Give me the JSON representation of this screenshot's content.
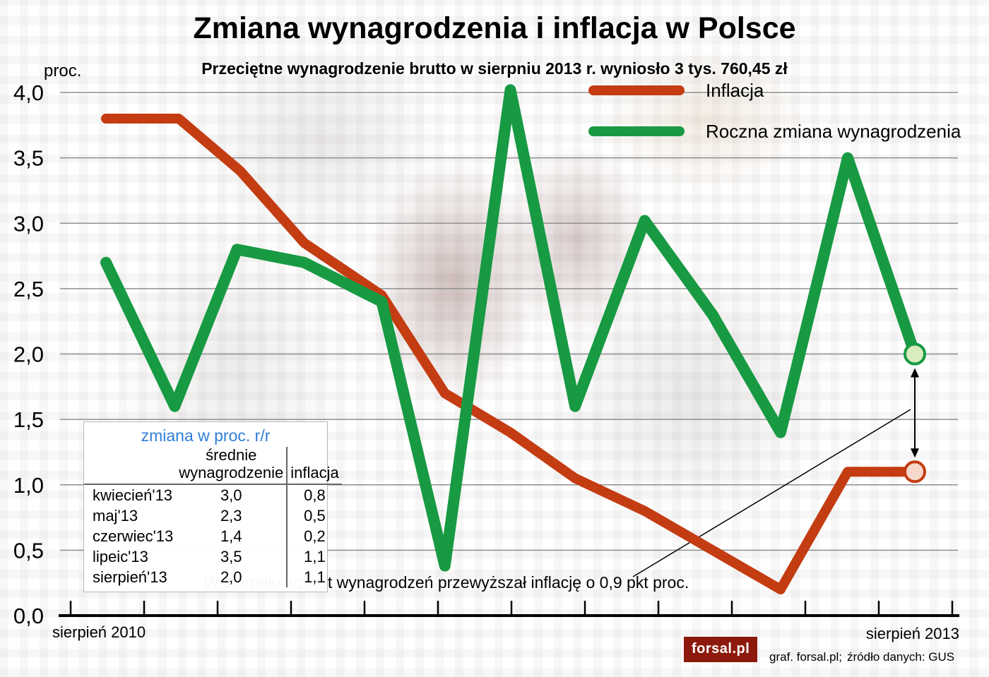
{
  "title": "Zmiana wynagrodzenia i inflacja w Polsce",
  "subtitle": "Przeciętne wynagrodzenie brutto w sierpniu 2013 r. wyniosło 3 tys. 760,45 zł",
  "axis": {
    "unit_label": "proc.",
    "x_left_label": "sierpień 2010",
    "x_right_label": "sierpień 2013"
  },
  "legend": [
    {
      "label": "Inflacja",
      "color": "#c43c12"
    },
    {
      "label": "Roczna zmiana wynagrodzenia",
      "color": "#179a42"
    }
  ],
  "inset_table": {
    "header": "zmiana w proc. r/r",
    "col1_header": "średnie wynagrodzenie",
    "col2_header": "inflacja",
    "rows": [
      {
        "month": "kwiecień'13",
        "wage": "3,0",
        "inflation": "0,8"
      },
      {
        "month": "maj'13",
        "wage": "2,3",
        "inflation": "0,5"
      },
      {
        "month": "czerwiec'13",
        "wage": "1,4",
        "inflation": "0,2"
      },
      {
        "month": "lipeic'13",
        "wage": "3,5",
        "inflation": "1,1"
      },
      {
        "month": "sierpień'13",
        "wage": "2,0",
        "inflation": "1,1"
      }
    ]
  },
  "annotation": "W sierpniu wzrost wynagrodzeń przewyższał inflację o 0,9 pkt proc.",
  "footer": {
    "logo_text": "forsal.pl",
    "credit": "graf. forsal.pl;",
    "source": "źródło danych: GUS"
  },
  "chart_data": {
    "type": "line",
    "title": "Zmiana wynagrodzenia i inflacja w Polsce",
    "subtitle": "Przeciętne wynagrodzenie brutto w sierpniu 2013 r. wyniosło 3 tys. 760,45 zł",
    "ylabel": "proc.",
    "ylim": [
      0,
      4.0
    ],
    "grid": true,
    "legend_position": "top-right",
    "yticks": [
      {
        "value": 4.0,
        "label": "4,0"
      },
      {
        "value": 3.5,
        "label": "3,5"
      },
      {
        "value": 3.0,
        "label": "3,0"
      },
      {
        "value": 2.5,
        "label": "2,5"
      },
      {
        "value": 2.0,
        "label": "2,0"
      },
      {
        "value": 1.5,
        "label": "1,5"
      },
      {
        "value": 1.0,
        "label": "1,0"
      },
      {
        "value": 0.5,
        "label": "0,5"
      },
      {
        "value": 0.0,
        "label": "0,0"
      }
    ],
    "x_axis": {
      "start": "sierpień 2010",
      "end": "sierpień 2013",
      "tick_count": 13
    },
    "series": [
      {
        "id": "inflacja",
        "name": "Inflacja",
        "color": "#c43c12",
        "line_width": 14,
        "marker_fill": "#f6d9cb",
        "x": [
          0,
          0.09,
          0.166,
          0.245,
          0.341,
          0.419,
          0.5,
          0.58,
          0.666,
          0.75,
          0.834,
          0.917,
          1.0
        ],
        "values": [
          3.8,
          3.8,
          3.4,
          2.85,
          2.45,
          1.7,
          1.4,
          1.05,
          0.8,
          0.5,
          0.2,
          1.1,
          1.1
        ]
      },
      {
        "id": "roczna-zmiana-wynagrodzenia",
        "name": "Roczna zmiana wynagrodzenia",
        "color": "#179a42",
        "line_width": 16,
        "marker_fill": "#d8ecbe",
        "x": [
          0,
          0.085,
          0.162,
          0.245,
          0.341,
          0.419,
          0.5,
          0.58,
          0.666,
          0.75,
          0.834,
          0.917,
          1.0
        ],
        "values": [
          2.7,
          1.6,
          2.8,
          2.7,
          2.4,
          0.38,
          4.02,
          1.6,
          3.02,
          2.3,
          1.4,
          3.5,
          2.0
        ]
      }
    ],
    "gap_annotation": {
      "text": "W sierpniu wzrost wynagrodzeń przewyższał inflację o 0,9 pkt proc.",
      "between": [
        "Roczna zmiana wynagrodzenia",
        "Inflacja"
      ],
      "value_pkt_proc": 0.9
    }
  }
}
